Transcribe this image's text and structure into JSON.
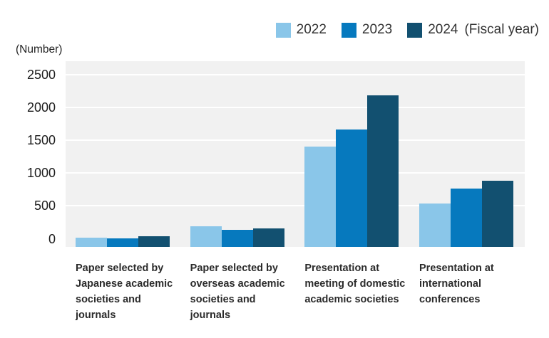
{
  "chart_data": {
    "type": "bar",
    "unit_label": "(Number)",
    "fiscal_year_label": "(Fiscal year)",
    "legend_position": "top-right",
    "grid": true,
    "plot_bg": "#F1F1F1",
    "gridline_color": "#FFFFFF",
    "y_ticks": [
      0,
      500,
      1000,
      1500,
      2000,
      2500
    ],
    "ylim": [
      0,
      2700
    ],
    "categories": [
      "Paper selected by\nJapanese academic\nsocieties and\njournals",
      "Paper selected by\noverseas academic\nsocieties and\njournals",
      "Presentation at\nmeeting of domestic\nacademic societies",
      "Presentation at\ninternational\nconferences"
    ],
    "series": [
      {
        "name": "2022",
        "color": "#8AC6E9",
        "values": [
          15,
          190,
          1400,
          540
        ]
      },
      {
        "name": "2023",
        "color": "#0679BE",
        "values": [
          10,
          135,
          1660,
          760
        ]
      },
      {
        "name": "2024",
        "color": "#125070",
        "values": [
          35,
          160,
          2180,
          880
        ]
      }
    ]
  }
}
